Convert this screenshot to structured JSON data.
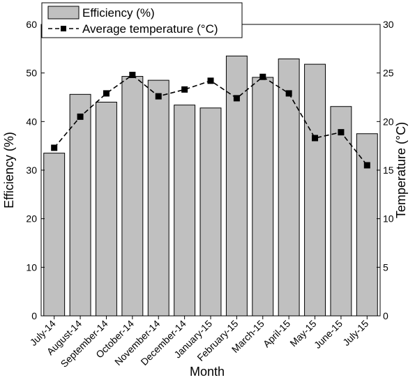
{
  "chart_data": {
    "type": "bar",
    "categories": [
      "July-14",
      "August-14",
      "September-14",
      "October-14",
      "November-14",
      "December-14",
      "January-15",
      "February-15",
      "March-15",
      "April-15",
      "May-15",
      "June-15",
      "July-15"
    ],
    "series": [
      {
        "name": "Efficiency (%)",
        "type": "bar",
        "axis": "left",
        "color": "#c0c0c0",
        "values": [
          33.5,
          45.6,
          44.0,
          49.3,
          48.5,
          43.4,
          42.8,
          53.5,
          49.1,
          52.9,
          51.8,
          43.1,
          37.5
        ]
      },
      {
        "name": "Average temperature (°C)",
        "type": "line",
        "axis": "right",
        "color": "#000000",
        "line_style": "dashed",
        "marker": "square",
        "values": [
          17.3,
          20.5,
          22.9,
          24.8,
          22.6,
          23.3,
          24.2,
          22.4,
          24.6,
          22.9,
          18.3,
          18.9,
          15.5
        ]
      }
    ],
    "xlabel": "Month",
    "ylabel": "Efficiency (%)",
    "y2label": "Temperature (°C)",
    "ylim": [
      0,
      60
    ],
    "y2lim": [
      0,
      30
    ],
    "yticks": [
      "0",
      "10",
      "20",
      "30",
      "40",
      "50",
      "60"
    ],
    "y2ticks": [
      "0",
      "5",
      "10",
      "15",
      "20",
      "25",
      "30"
    ],
    "grid": false,
    "legend_position": "top-left"
  }
}
